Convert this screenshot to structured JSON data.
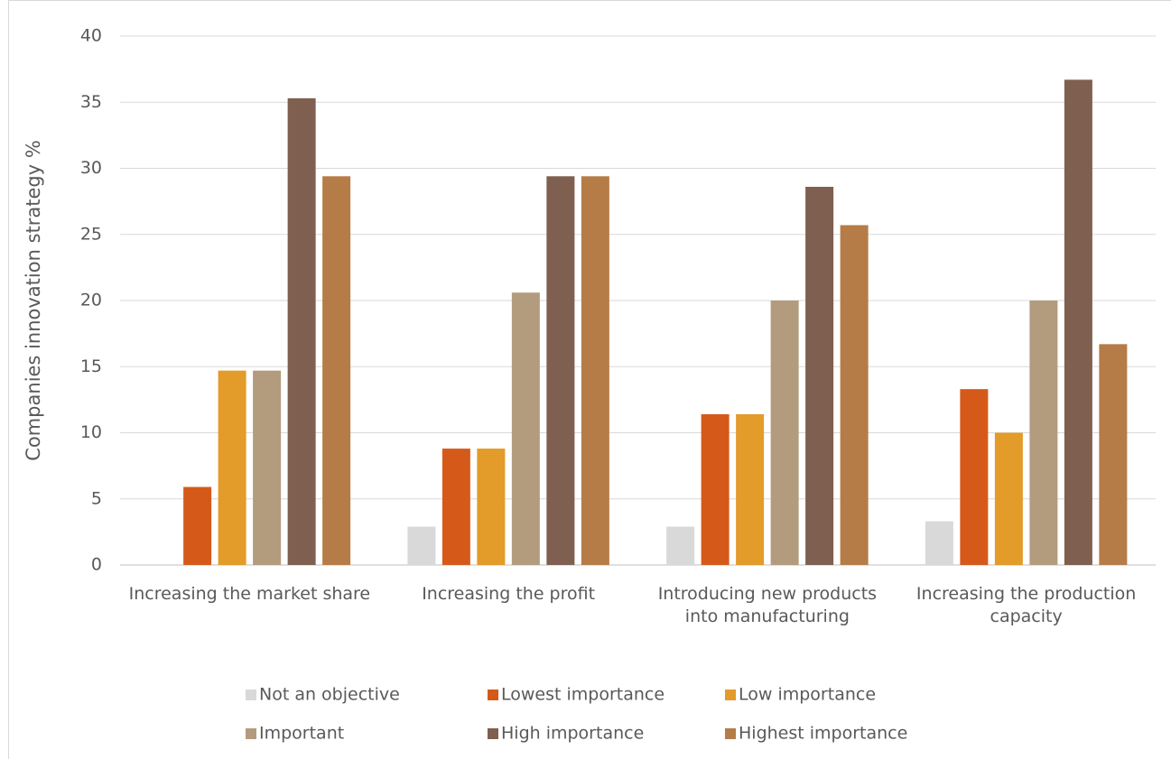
{
  "chart_data": {
    "type": "bar",
    "y_label": "Companies innovation strategy %",
    "categories": [
      "Increasing the market share",
      "Increasing the profit",
      "Introducing new products into manufacturing",
      "Increasing the production capacity"
    ],
    "series": [
      {
        "name": "Not an objective",
        "color": "#d9d9d9",
        "values": [
          0,
          2.9,
          2.9,
          3.3
        ]
      },
      {
        "name": "Lowest importance",
        "color": "#d55a1a",
        "values": [
          5.9,
          8.8,
          11.4,
          13.3
        ]
      },
      {
        "name": "Low importance",
        "color": "#e39b29",
        "values": [
          14.7,
          8.8,
          11.4,
          10.0
        ]
      },
      {
        "name": "Important",
        "color": "#b39c7e",
        "values": [
          14.7,
          20.6,
          20.0,
          20.0
        ]
      },
      {
        "name": "High importance",
        "color": "#7f5f4f",
        "values": [
          35.3,
          29.4,
          28.6,
          36.7
        ]
      },
      {
        "name": "Highest importance",
        "color": "#b57c48",
        "values": [
          29.4,
          29.4,
          25.7,
          16.7
        ]
      }
    ],
    "ylim": [
      0,
      40
    ],
    "yticks": [
      0,
      5,
      10,
      15,
      20,
      25,
      30,
      35,
      40
    ],
    "grid": true,
    "legend": "bottom"
  }
}
